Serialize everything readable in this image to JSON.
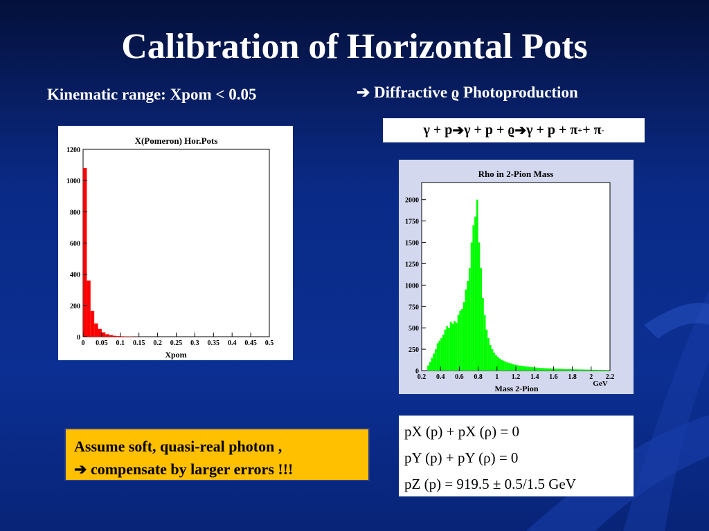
{
  "slide": {
    "title_words": [
      "Calibration of",
      "Horizontal Pots"
    ],
    "kinematic": "Kinematic range: Xpom < 0.05",
    "arrow_icon": "right-arrow",
    "diffractive": "Diffractive ϱ Photoproduction",
    "reaction": {
      "part1": "γ + p ",
      "part2": " γ + p + ϱ ",
      "part3": " γ + p + π",
      "sup1": "+",
      "part4": " + π",
      "sup2": "-"
    },
    "note": {
      "line1": "Assume soft, quasi-real photon ,",
      "line2": " compensate  by larger errors !!!"
    },
    "formulas": {
      "f1": "pX (p) +  pX (ρ) = 0",
      "f2": "pY (p) +  pY (ρ)  = 0",
      "f3": "pZ (p) = 919.5 ± 0.5/1.5 GeV"
    },
    "colors": {
      "hist1": "#ff0000",
      "hist2": "#00ff00",
      "note_bg": "#ffc000"
    }
  },
  "chart_data": [
    {
      "type": "bar",
      "title": "X(Pomeron) Hor.Pots",
      "xlabel": "Xpom",
      "ylabel": "",
      "xlim": [
        0,
        0.5
      ],
      "ylim": [
        0,
        1200
      ],
      "xticks": [
        "0",
        "0.05",
        "0.1",
        "0.15",
        "0.2",
        "0.25",
        "0.3",
        "0.35",
        "0.4",
        "0.45",
        "0.5"
      ],
      "yticks": [
        "0",
        "200",
        "400",
        "600",
        "800",
        "1000",
        "1200"
      ],
      "bin_start": 0,
      "bin_width": 0.01,
      "values": [
        1080,
        360,
        165,
        85,
        50,
        28,
        16,
        10,
        6,
        4,
        3,
        2,
        2,
        1,
        1
      ]
    },
    {
      "type": "bar",
      "title": "Rho in 2-Pion Mass",
      "xlabel": "Mass 2-Pion",
      "xunit": "GeV",
      "ylabel": "",
      "xlim": [
        0.2,
        2.2
      ],
      "ylim": [
        0,
        2200
      ],
      "xticks": [
        "0.2",
        "0.4",
        "0.6",
        "0.8",
        "1",
        "1.2",
        "1.4",
        "1.6",
        "1.8",
        "2",
        "2.2"
      ],
      "yticks": [
        "0",
        "250",
        "500",
        "750",
        "1000",
        "1250",
        "1500",
        "1750",
        "2000"
      ],
      "bin_start": 0.26,
      "bin_width": 0.02,
      "values": [
        60,
        100,
        150,
        200,
        250,
        320,
        350,
        380,
        420,
        480,
        520,
        500,
        570,
        550,
        580,
        560,
        650,
        700,
        720,
        800,
        950,
        1050,
        1200,
        1500,
        1700,
        1800,
        2000,
        1500,
        1200,
        850,
        650,
        480,
        380,
        300,
        250,
        210,
        180,
        160,
        140,
        125,
        115,
        105,
        95,
        90,
        85,
        75,
        70,
        65,
        60,
        58,
        55,
        50,
        48,
        45,
        42,
        40,
        38,
        36,
        34,
        32,
        30,
        30,
        28,
        27,
        26,
        25,
        24,
        23,
        22,
        21,
        20,
        19,
        18,
        17,
        16,
        16,
        15,
        15,
        14,
        14,
        13,
        13,
        12,
        12,
        11,
        11,
        10,
        10,
        10,
        9,
        9,
        8,
        8,
        7,
        7,
        6,
        6
      ]
    }
  ]
}
